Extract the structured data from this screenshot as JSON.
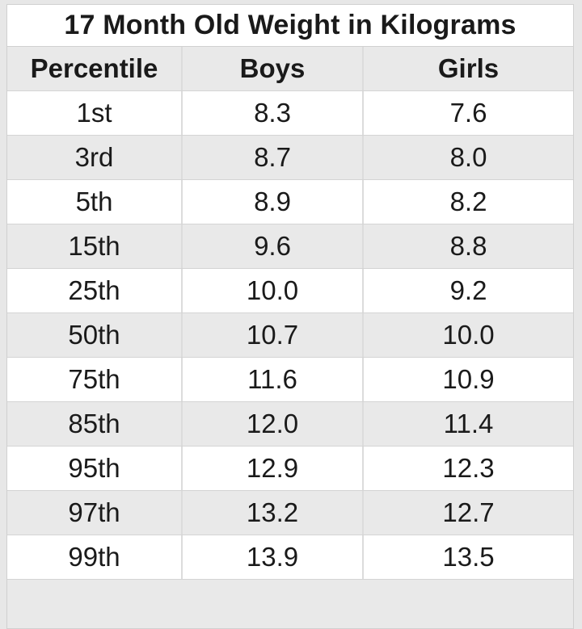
{
  "table": {
    "title": "17 Month Old Weight in Kilograms",
    "columns": [
      "Percentile",
      "Boys",
      "Girls"
    ],
    "rows": [
      [
        "1st",
        "8.3",
        "7.6"
      ],
      [
        "3rd",
        "8.7",
        "8.0"
      ],
      [
        "5th",
        "8.9",
        "8.2"
      ],
      [
        "15th",
        "9.6",
        "8.8"
      ],
      [
        "25th",
        "10.0",
        "9.2"
      ],
      [
        "50th",
        "10.7",
        "10.0"
      ],
      [
        "75th",
        "11.6",
        "10.9"
      ],
      [
        "85th",
        "12.0",
        "11.4"
      ],
      [
        "95th",
        "12.9",
        "12.3"
      ],
      [
        "97th",
        "13.2",
        "12.7"
      ],
      [
        "99th",
        "13.9",
        "13.5"
      ]
    ]
  },
  "colors": {
    "stripe": "#e9e9e9",
    "border": "#d0d0d0",
    "text": "#1a1a1a",
    "page_background": "#e7e7e7"
  },
  "chart_data": {
    "type": "table",
    "title": "17 Month Old Weight in Kilograms",
    "columns": [
      "Percentile",
      "Boys",
      "Girls"
    ],
    "rows": [
      [
        "1st",
        "8.3",
        "7.6"
      ],
      [
        "3rd",
        "8.7",
        "8.0"
      ],
      [
        "5th",
        "8.9",
        "8.2"
      ],
      [
        "15th",
        "9.6",
        "8.8"
      ],
      [
        "25th",
        "10.0",
        "9.2"
      ],
      [
        "50th",
        "10.7",
        "10.0"
      ],
      [
        "75th",
        "11.6",
        "10.9"
      ],
      [
        "85th",
        "12.0",
        "11.4"
      ],
      [
        "95th",
        "12.9",
        "12.3"
      ],
      [
        "97th",
        "13.2",
        "12.7"
      ],
      [
        "99th",
        "13.9",
        "13.5"
      ]
    ],
    "units": "kilograms",
    "layout": "title row, bold header row, 11 alternating-striped data rows"
  }
}
